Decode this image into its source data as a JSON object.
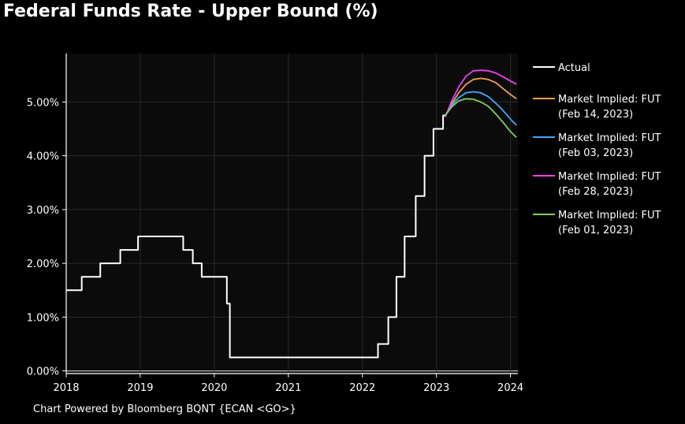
{
  "chart_data": {
    "type": "line",
    "title": "Federal Funds Rate - Upper Bound (%)",
    "xlabel": "",
    "ylabel": "",
    "xlim": [
      2018.0,
      2024.1
    ],
    "ylim": [
      -0.05,
      5.9
    ],
    "x_ticks": [
      2018,
      2019,
      2020,
      2021,
      2022,
      2023,
      2024
    ],
    "x_tick_labels": [
      "2018",
      "2019",
      "2020",
      "2021",
      "2022",
      "2023",
      "2024"
    ],
    "y_ticks": [
      0,
      1,
      2,
      3,
      4,
      5
    ],
    "y_tick_labels": [
      "0.00%",
      "1.00%",
      "2.00%",
      "3.00%",
      "4.00%",
      "5.00%"
    ],
    "grid": true,
    "legend_position": "right",
    "series": [
      {
        "name": "Actual",
        "color": "#ffffff",
        "step": true,
        "points": [
          [
            2018.0,
            1.5
          ],
          [
            2018.21,
            1.75
          ],
          [
            2018.46,
            2.0
          ],
          [
            2018.73,
            2.25
          ],
          [
            2018.97,
            2.5
          ],
          [
            2019.58,
            2.25
          ],
          [
            2019.71,
            2.0
          ],
          [
            2019.83,
            1.75
          ],
          [
            2020.17,
            1.25
          ],
          [
            2020.21,
            0.25
          ],
          [
            2022.21,
            0.5
          ],
          [
            2022.35,
            1.0
          ],
          [
            2022.46,
            1.75
          ],
          [
            2022.57,
            2.5
          ],
          [
            2022.72,
            3.25
          ],
          [
            2022.84,
            4.0
          ],
          [
            2022.96,
            4.5
          ],
          [
            2023.09,
            4.75
          ],
          [
            2023.12,
            4.75
          ]
        ]
      },
      {
        "name": "Market Implied: FUT (Feb 14, 2023)",
        "color": "#f0a050",
        "points": [
          [
            2023.12,
            4.75
          ],
          [
            2023.2,
            4.95
          ],
          [
            2023.3,
            5.17
          ],
          [
            2023.4,
            5.33
          ],
          [
            2023.5,
            5.42
          ],
          [
            2023.6,
            5.44
          ],
          [
            2023.7,
            5.42
          ],
          [
            2023.8,
            5.36
          ],
          [
            2023.9,
            5.25
          ],
          [
            2024.0,
            5.14
          ],
          [
            2024.08,
            5.06
          ]
        ]
      },
      {
        "name": "Market Implied: FUT (Feb 03, 2023)",
        "color": "#40a8ff",
        "points": [
          [
            2023.12,
            4.75
          ],
          [
            2023.2,
            4.93
          ],
          [
            2023.3,
            5.08
          ],
          [
            2023.4,
            5.17
          ],
          [
            2023.5,
            5.19
          ],
          [
            2023.6,
            5.17
          ],
          [
            2023.7,
            5.1
          ],
          [
            2023.8,
            4.98
          ],
          [
            2023.9,
            4.84
          ],
          [
            2024.0,
            4.68
          ],
          [
            2024.08,
            4.57
          ]
        ]
      },
      {
        "name": "Market Implied: FUT (Feb 28, 2023)",
        "color": "#f040f0",
        "points": [
          [
            2023.12,
            4.72
          ],
          [
            2023.2,
            5.0
          ],
          [
            2023.3,
            5.28
          ],
          [
            2023.4,
            5.48
          ],
          [
            2023.5,
            5.58
          ],
          [
            2023.6,
            5.59
          ],
          [
            2023.7,
            5.58
          ],
          [
            2023.8,
            5.54
          ],
          [
            2023.9,
            5.47
          ],
          [
            2024.0,
            5.39
          ],
          [
            2024.08,
            5.33
          ]
        ]
      },
      {
        "name": "Market Implied: FUT (Feb 01, 2023)",
        "color": "#80d060",
        "points": [
          [
            2023.12,
            4.75
          ],
          [
            2023.2,
            4.9
          ],
          [
            2023.3,
            5.02
          ],
          [
            2023.4,
            5.06
          ],
          [
            2023.5,
            5.05
          ],
          [
            2023.6,
            5.0
          ],
          [
            2023.7,
            4.92
          ],
          [
            2023.8,
            4.78
          ],
          [
            2023.9,
            4.62
          ],
          [
            2024.0,
            4.45
          ],
          [
            2024.08,
            4.34
          ]
        ]
      }
    ],
    "legend": [
      {
        "line1": "Actual",
        "line2": "",
        "color": "#ffffff"
      },
      {
        "line1": "Market Implied: FUT",
        "line2": "(Feb 14, 2023)",
        "color": "#f0a050"
      },
      {
        "line1": "Market Implied: FUT",
        "line2": "(Feb 03, 2023)",
        "color": "#40a8ff"
      },
      {
        "line1": "Market Implied: FUT",
        "line2": "(Feb 28, 2023)",
        "color": "#f040f0"
      },
      {
        "line1": "Market Implied: FUT",
        "line2": "(Feb 01, 2023)",
        "color": "#80d060"
      }
    ]
  },
  "footer": {
    "text": "Chart Powered by Bloomberg BQNT {ECAN <GO>}"
  },
  "colors": {
    "page_background": "#000000",
    "plot_background": "#0b0b0b",
    "grid": "#2a2a2a",
    "axis": "#ffffff"
  }
}
